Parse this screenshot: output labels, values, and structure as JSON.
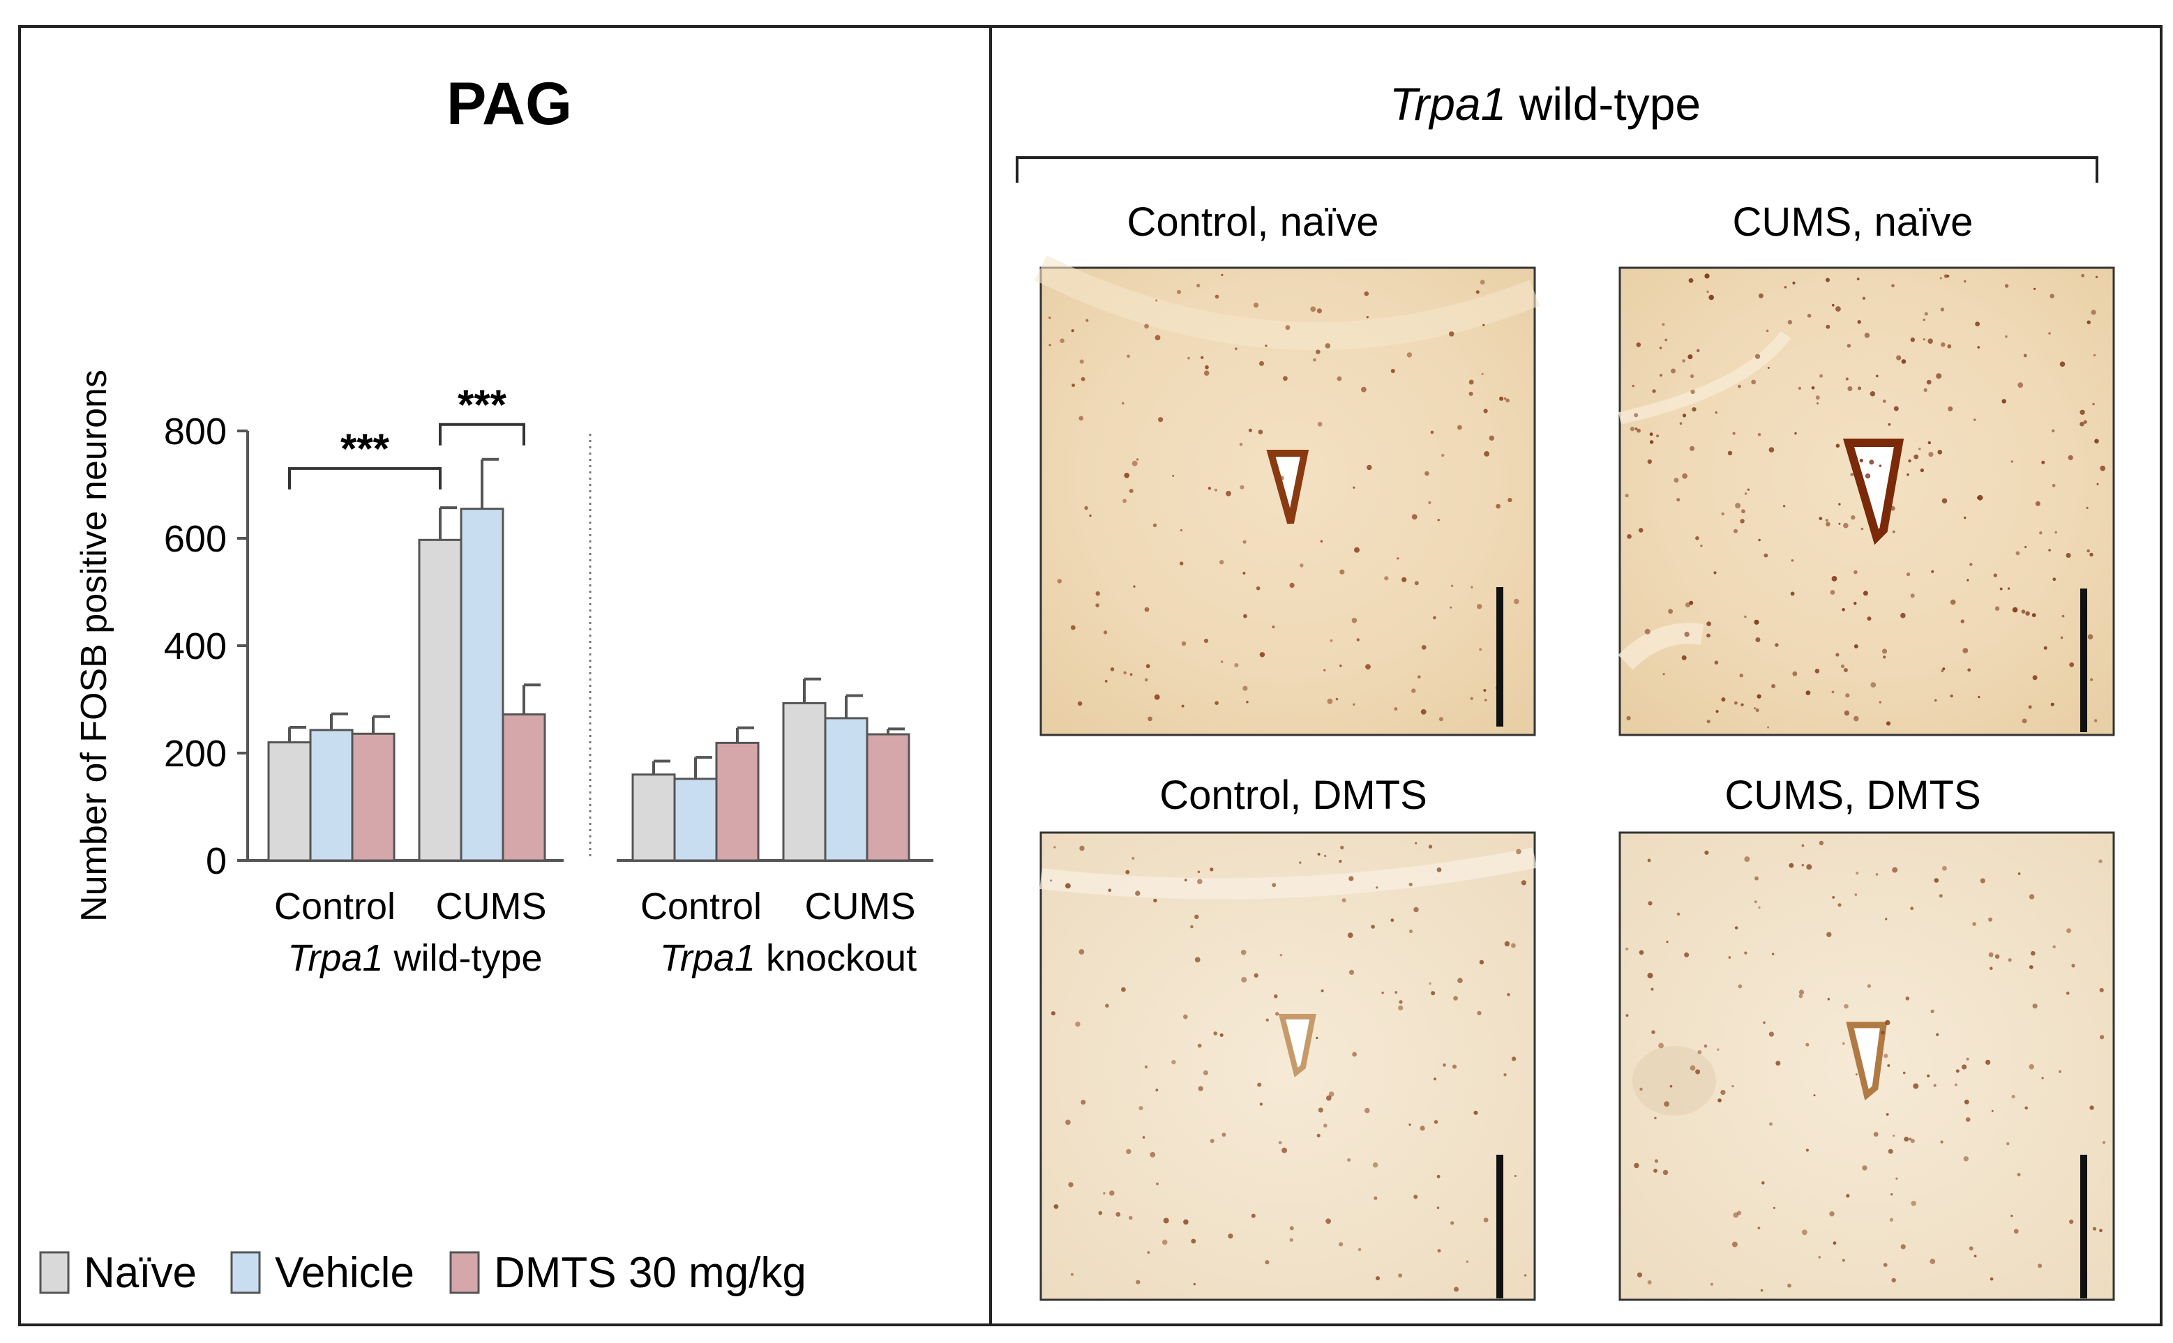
{
  "left_panel": {
    "title": "PAG",
    "legend": [
      {
        "label": "Naïve",
        "color": "#d9d9d9"
      },
      {
        "label": "Vehicle",
        "color": "#c9ddf1"
      },
      {
        "label": "DMTS 30 mg/kg",
        "color": "#d6a7aa"
      }
    ]
  },
  "chart_data": {
    "type": "bar",
    "title": "PAG",
    "ylabel": "Number of FOSB positive neurons",
    "ylim": [
      0,
      800
    ],
    "yticks": [
      0,
      200,
      400,
      600,
      800
    ],
    "grid": false,
    "legend_position": "bottom-left",
    "genotypes": [
      {
        "name_italic": "Trpa1",
        "name_rest": " wild-type"
      },
      {
        "name_italic": "Trpa1",
        "name_rest": " knockout"
      }
    ],
    "categories": [
      "Control",
      "CUMS",
      "Control",
      "CUMS"
    ],
    "series": [
      {
        "name": "Naïve",
        "color": "#d9d9d9",
        "values": [
          220,
          597,
          160,
          293
        ],
        "errors": [
          28,
          60,
          25,
          45
        ]
      },
      {
        "name": "Vehicle",
        "color": "#c9ddf1",
        "values": [
          243,
          655,
          152,
          265
        ],
        "errors": [
          30,
          92,
          40,
          42
        ]
      },
      {
        "name": "DMTS 30 mg/kg",
        "color": "#d6a7aa",
        "values": [
          236,
          272,
          219,
          235
        ],
        "errors": [
          32,
          55,
          28,
          10
        ]
      }
    ],
    "significance": [
      {
        "label": "***",
        "from": [
          0,
          0
        ],
        "to": [
          1,
          0
        ],
        "bracket_y": 730
      },
      {
        "label": "***",
        "from": [
          1,
          0
        ],
        "to": [
          1,
          2
        ],
        "bracket_y": 812
      }
    ]
  },
  "right_panel": {
    "header_italic": "Trpa1",
    "header_rest": " wild-type",
    "images": [
      {
        "label": "Control, naïve"
      },
      {
        "label": "CUMS, naïve"
      },
      {
        "label": "Control, DMTS"
      },
      {
        "label": "CUMS, DMTS"
      }
    ]
  }
}
